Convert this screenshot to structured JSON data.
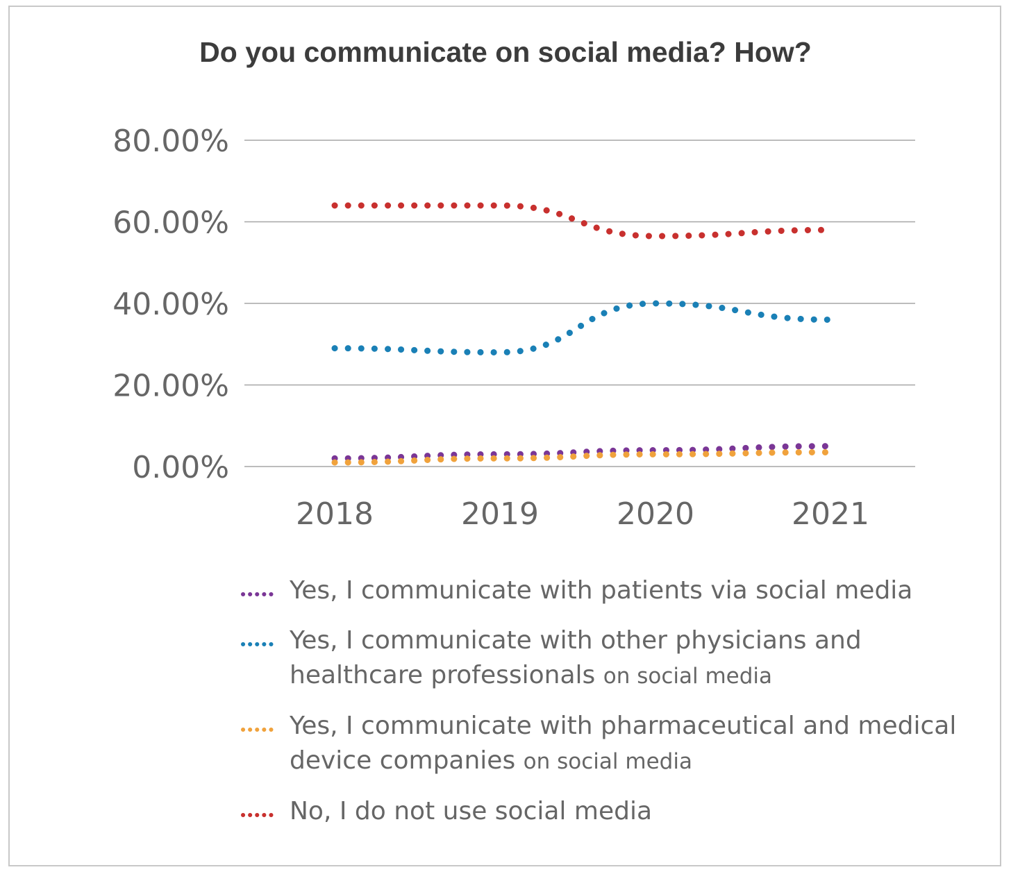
{
  "chart_data": {
    "type": "line",
    "title": "Do you communicate on social media? How?",
    "categories": [
      "2018",
      "2019",
      "2020",
      "2021"
    ],
    "y_ticks": [
      "0.00%",
      "20.00%",
      "40.00%",
      "60.00%",
      "80.00%"
    ],
    "ylim": [
      0,
      80
    ],
    "grid": true,
    "line_style": "dotted",
    "legend_position": "bottom",
    "series": [
      {
        "name": "Yes, I communicate with patients via social media",
        "name_main": "Yes, I communicate with patients via social media",
        "name_tail": "",
        "color": "#7a3696",
        "values": [
          2,
          3,
          4,
          5
        ]
      },
      {
        "name": "Yes, I communicate with other physicians and healthcare professionals on social media",
        "name_main": "Yes, I communicate with other physicians and healthcare professionals",
        "name_tail": "on social media",
        "color": "#1a80b6",
        "values": [
          29,
          28,
          40,
          36
        ]
      },
      {
        "name": "Yes, I communicate with pharmaceutical and medical device companies on social media",
        "name_main": "Yes, I communicate with pharmaceutical and medical device companies",
        "name_tail": "on social media",
        "color": "#f0a23c",
        "values": [
          1,
          2,
          3,
          3.5
        ]
      },
      {
        "name": "No, I do not use social media",
        "name_main": "No, I do not use social media",
        "name_tail": "",
        "color": "#c8302e",
        "values": [
          64,
          64,
          56.5,
          58
        ]
      }
    ]
  }
}
